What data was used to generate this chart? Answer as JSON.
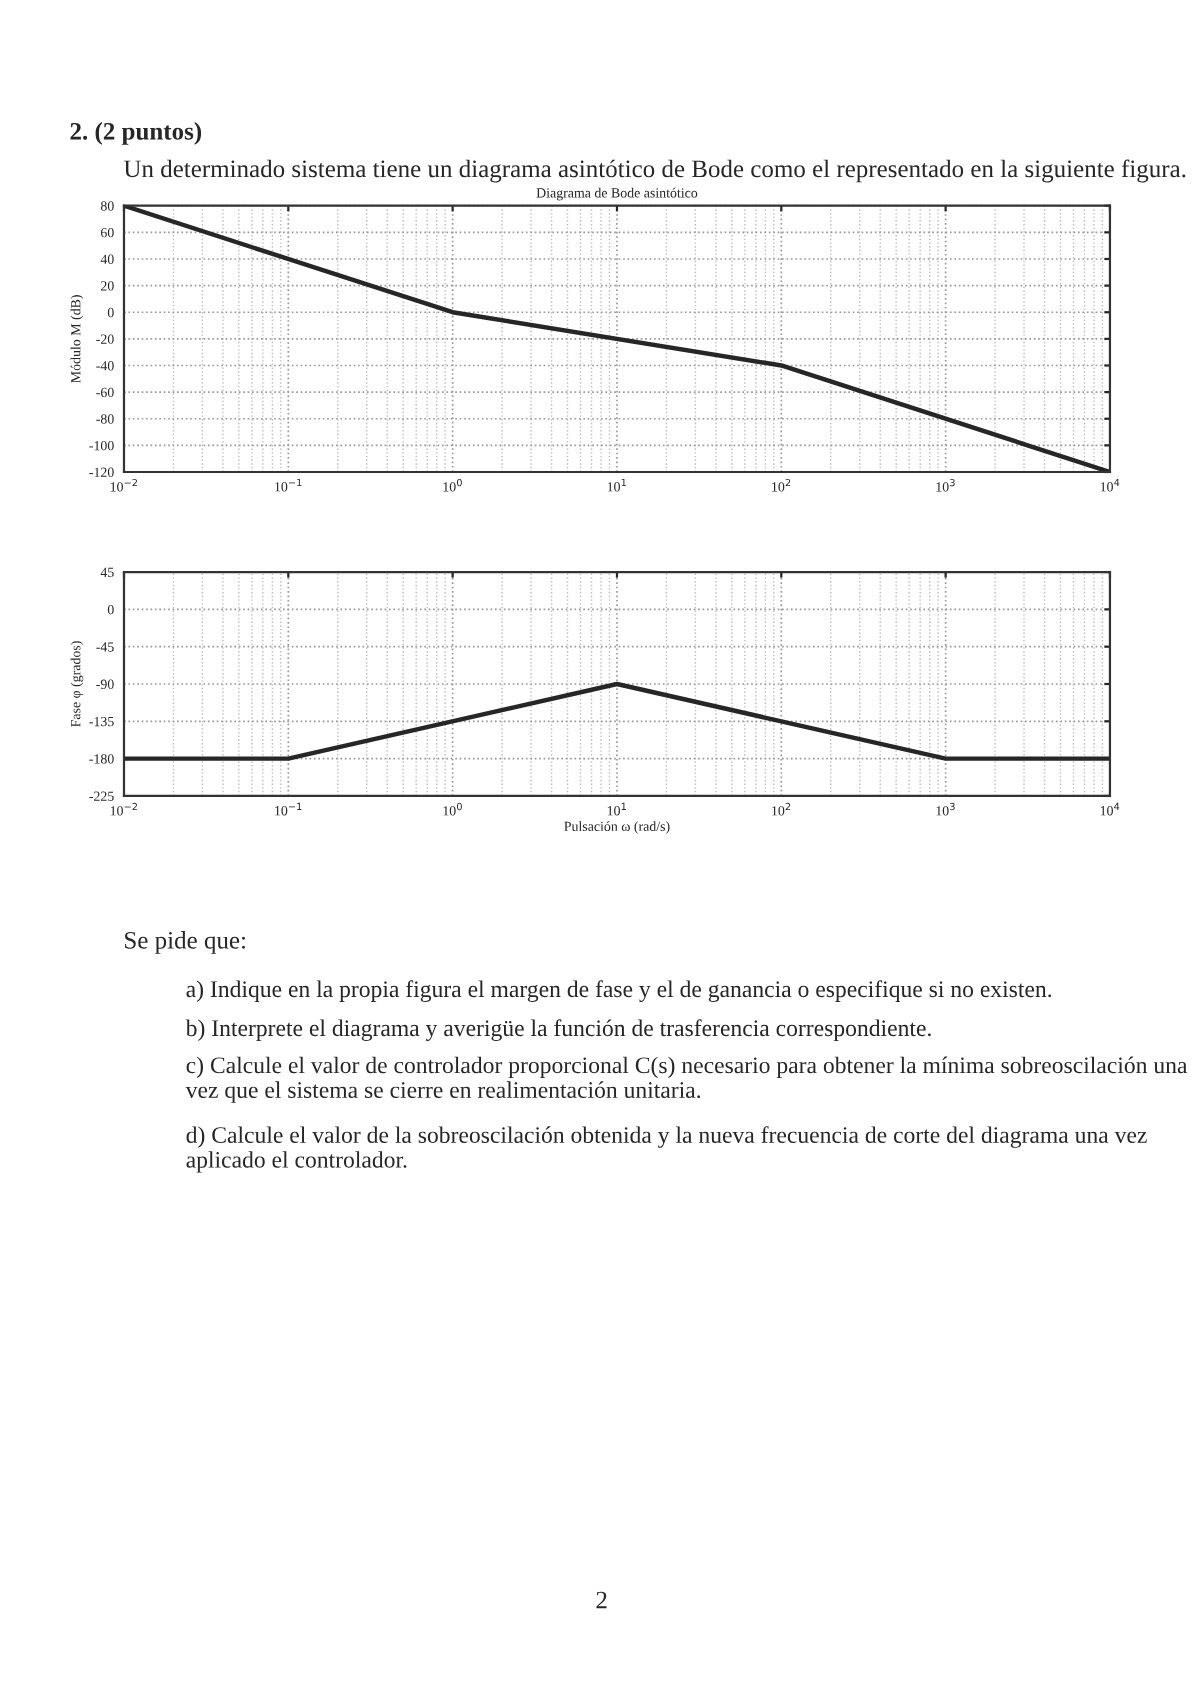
{
  "chart_data": [
    {
      "type": "line",
      "title": "Diagrama de Bode asintótico",
      "ylabel": "Módulo M (dB)",
      "annotations": [
        "2. (2 puntos)",
        "Un determinado sistema tiene un diagrama asintótico de Bode como el representado en la siguiente figura."
      ],
      "log": "x",
      "grid": true,
      "series": [
        {
          "color": "#262626",
          "x": [
            0.01,
            1,
            100,
            10000
          ],
          "values": [
            80,
            0,
            -40,
            -120
          ]
        }
      ],
      "xlim": [
        0.01,
        10000
      ],
      "xticks": [
        {
          "value": 0.01,
          "label": "10$^{−2}$"
        },
        {
          "value": 0.1,
          "label": "10$^{−1}$"
        },
        {
          "value": 1,
          "label": "10$^{0}$"
        },
        {
          "value": 10,
          "label": "10$^{1}$"
        },
        {
          "value": 100,
          "label": "10$^{2}$"
        },
        {
          "value": 1000,
          "label": "10$^{3}$"
        },
        {
          "value": 10000,
          "label": "10$^{4}$"
        }
      ],
      "ylim": [
        -120,
        80
      ],
      "yticks": [
        -120,
        -100,
        -80,
        -60,
        -40,
        -20,
        0,
        20,
        40,
        60,
        80
      ]
    },
    {
      "type": "line",
      "ylabel": "Fase φ (grados)",
      "xlabel": "Pulsación ω (rad/s)",
      "annotations": [
        "Se pide que:",
        "a) Indique en la propia figura el margen de fase y el de ganancia o especifique si no existen.",
        "b) Interprete el diagrama y averigüe la función de trasferencia correspondiente.",
        "c) Calcule el valor de controlador proporcional C(s) necesario para obtener la mínima sobreoscilación una vez que el sistema se cierre en realimentación unitaria.",
        "d) Calcule el valor de la sobreoscilación obtenida y la nueva frecuencia de corte del diagrama una vez aplicado el controlador.",
        "2"
      ],
      "log": "x",
      "grid": true,
      "series": [
        {
          "color": "#262626",
          "x": [
            0.01,
            0.1,
            10,
            1000,
            10000
          ],
          "values": [
            -180,
            -180,
            -90,
            -180,
            -180
          ]
        }
      ],
      "xlim": [
        0.01,
        10000
      ],
      "xticks": [
        {
          "value": 0.01,
          "label": "10$^{−2}$"
        },
        {
          "value": 0.1,
          "label": "10$^{−1}$"
        },
        {
          "value": 1,
          "label": "10$^{0}$"
        },
        {
          "value": 10,
          "label": "10$^{1}$"
        },
        {
          "value": 100,
          "label": "10$^{2}$"
        },
        {
          "value": 1000,
          "label": "10$^{3}$"
        },
        {
          "value": 10000,
          "label": "10$^{4}$"
        }
      ],
      "ylim": [
        -225,
        45
      ],
      "yticks": [
        -225,
        -180,
        -135,
        -90,
        -45,
        0,
        45
      ]
    }
  ]
}
